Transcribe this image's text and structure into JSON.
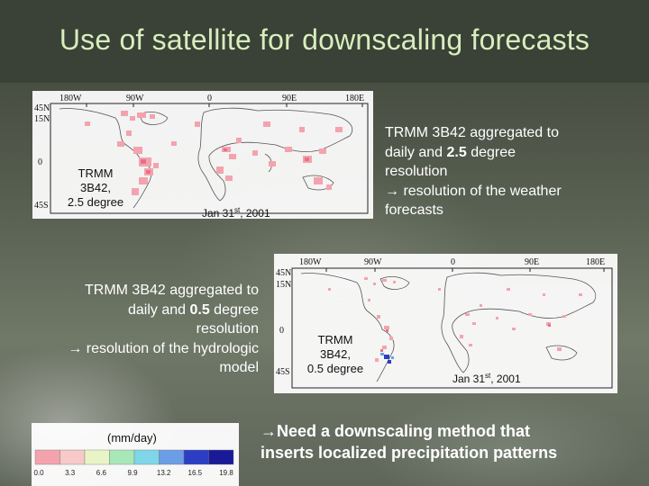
{
  "slide": {
    "title": "Use of satellite for downscaling forecasts"
  },
  "map_top": {
    "lon_labels": [
      "180W",
      "90W",
      "0",
      "90E",
      "180E"
    ],
    "lat_labels": [
      "45N",
      "15N",
      "0",
      "45S"
    ],
    "label_line1": "TRMM",
    "label_line2": "3B42,",
    "label_line3": "2.5 degree",
    "date_prefix": "Jan 31",
    "date_sup": "st",
    "date_suffix": ", 2001"
  },
  "map_bottom": {
    "lon_labels": [
      "180W",
      "90W",
      "0",
      "90E",
      "180E"
    ],
    "lat_labels": [
      "45N",
      "15N",
      "0",
      "45S"
    ],
    "label_line1": "TRMM",
    "label_line2": "3B42,",
    "label_line3": "0.5 degree",
    "date_prefix": "Jan 31",
    "date_sup": "st",
    "date_suffix": ", 2001"
  },
  "text_right": {
    "line1": "TRMM 3B42 aggregated to",
    "line2_a": "daily and ",
    "line2_b": "2.5",
    "line2_c": " degree",
    "line3": "resolution",
    "line4": "→ resolution of the weather",
    "line5": "forecasts"
  },
  "text_left": {
    "line1": "TRMM 3B42 aggregated to",
    "line2_a": "daily and ",
    "line2_b": "0.5",
    "line2_c": " degree",
    "line3": "resolution",
    "line4": "→ resolution of the hydrologic",
    "line5": "model"
  },
  "color_scale": {
    "unit": "(mm/day)",
    "ticks": [
      "0.0",
      "3.3",
      "6.6",
      "9.9",
      "13.2",
      "16.5",
      "19.8"
    ],
    "colors": [
      "#f4a3ae",
      "#f7c9c9",
      "#e8f4c6",
      "#a8e7b8",
      "#7fd6e8",
      "#6b9ee6",
      "#2c3fc4",
      "#1a1a99"
    ]
  },
  "conclusion": {
    "line1": "→Need a downscaling method that",
    "line2": "inserts localized precipitation patterns"
  }
}
